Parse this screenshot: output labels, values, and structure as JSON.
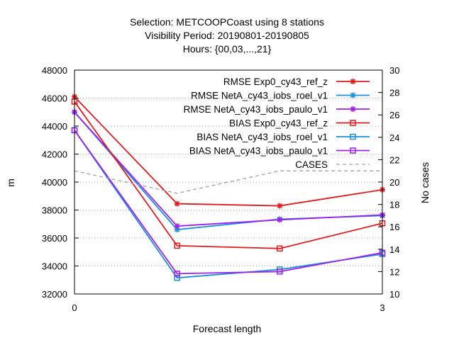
{
  "chart_data": {
    "type": "line",
    "title_lines": [
      "Selection: METCOOPCoast using     8 stations",
      "Visibility   Period: 20190801-20190805",
      "Hours: {00,03,...,21}"
    ],
    "xlabel": "Forecast length",
    "ylabel": "m",
    "y2label": "No cases",
    "xlim": [
      0,
      3
    ],
    "ylim": [
      32000,
      48000
    ],
    "y2lim": [
      10,
      30
    ],
    "x_ticks": [
      0,
      3
    ],
    "y_ticks": [
      32000,
      34000,
      36000,
      38000,
      40000,
      42000,
      44000,
      46000,
      48000
    ],
    "y2_ticks": [
      10,
      12,
      14,
      16,
      18,
      20,
      22,
      24,
      26,
      28,
      30
    ],
    "x": [
      0,
      1,
      2,
      3
    ],
    "grid": true,
    "legend_position": "top-right",
    "series": [
      {
        "name": "RMSE Exp0_cy43_ref_z",
        "axis": "y",
        "color": "#e31a1c",
        "marker": "star",
        "dash": "solid",
        "values": [
          46100,
          38450,
          38300,
          39450
        ]
      },
      {
        "name": "RMSE NetA_cy43_iobs_roel_v1",
        "axis": "y",
        "color": "#1a8fdc",
        "marker": "star",
        "dash": "solid",
        "values": [
          45000,
          36600,
          37350,
          37600
        ]
      },
      {
        "name": "RMSE NetA_cy43_iobs_paulo_v1",
        "axis": "y",
        "color": "#a020f0",
        "marker": "star",
        "dash": "solid",
        "values": [
          45000,
          36850,
          37300,
          37650
        ]
      },
      {
        "name": "BIAS Exp0_cy43_ref_z",
        "axis": "y",
        "color": "#e31a1c",
        "marker": "square",
        "dash": "solid",
        "values": [
          45750,
          35450,
          35250,
          37050
        ]
      },
      {
        "name": "BIAS NetA_cy43_iobs_roel_v1",
        "axis": "y",
        "color": "#1a8fdc",
        "marker": "square",
        "dash": "solid",
        "values": [
          43700,
          33150,
          33750,
          34850
        ]
      },
      {
        "name": "BIAS NetA_cy43_iobs_paulo_v1",
        "axis": "y",
        "color": "#a020f0",
        "marker": "square",
        "dash": "solid",
        "values": [
          43700,
          33450,
          33600,
          34950
        ]
      },
      {
        "name": "CASES",
        "axis": "y2",
        "color": "#a0a0a0",
        "marker": "none",
        "dash": "dashed",
        "values": [
          21,
          19,
          21,
          21
        ]
      }
    ]
  }
}
